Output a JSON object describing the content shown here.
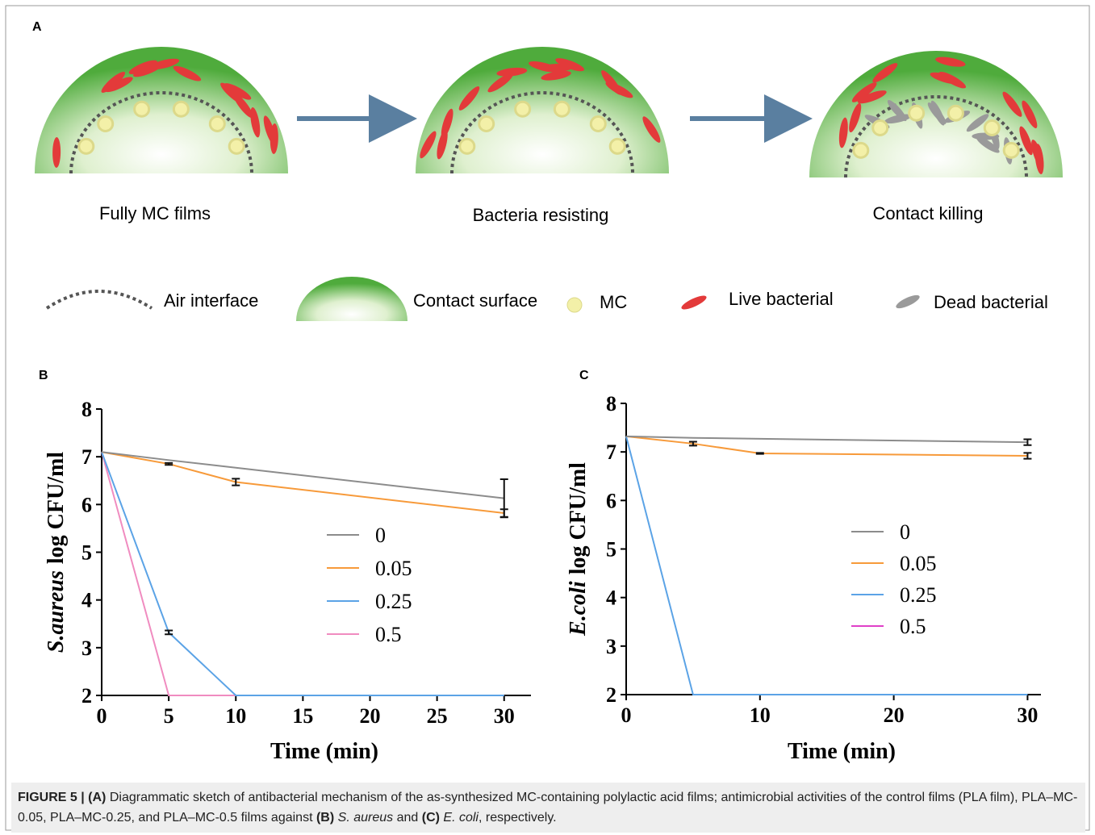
{
  "panel_a": {
    "label": "A",
    "stages": [
      "Fully MC films",
      "Bacteria resisting",
      "Contact killing"
    ],
    "legend": [
      "Air interface",
      "Contact surface",
      "MC",
      "Live bacterial",
      "Dead bacterial"
    ]
  },
  "chart_data": [
    {
      "type": "line",
      "panel_label": "B",
      "x_label": "Time (min)",
      "y_label_species": "S.aureus",
      "y_label": "log CFU/ml",
      "x": [
        0,
        5,
        10,
        30
      ],
      "xlim": [
        0,
        32
      ],
      "xticks": [
        0,
        5,
        10,
        15,
        20,
        25,
        30
      ],
      "ylim": [
        2,
        8
      ],
      "yticks": [
        2,
        3,
        4,
        5,
        6,
        7,
        8
      ],
      "legend": "right",
      "series": [
        {
          "name": "0",
          "color": "#8c8c8c",
          "values": [
            7.1,
            6.93,
            6.77,
            6.13
          ],
          "errors": [
            0,
            0,
            0,
            0.4
          ]
        },
        {
          "name": "0.05",
          "color": "#f79a3a",
          "values": [
            7.1,
            6.85,
            6.47,
            5.82
          ],
          "errors": [
            0,
            0.02,
            0.07,
            0.08
          ]
        },
        {
          "name": "0.25",
          "color": "#5ba3e6",
          "values": [
            7.1,
            3.32,
            2,
            2
          ],
          "errors": [
            0,
            0.04,
            0,
            0
          ]
        },
        {
          "name": "0.5",
          "color": "#f08cc0",
          "values": [
            7.1,
            2,
            2,
            2
          ],
          "errors": [
            0,
            0,
            0,
            0
          ]
        }
      ]
    },
    {
      "type": "line",
      "panel_label": "C",
      "x_label": "Time (min)",
      "y_label_species": "E.coli",
      "y_label": "log CFU/ml",
      "x": [
        0,
        5,
        10,
        30
      ],
      "xlim": [
        0,
        31
      ],
      "xticks": [
        0,
        10,
        20,
        30
      ],
      "ylim": [
        2,
        8
      ],
      "yticks": [
        2,
        3,
        4,
        5,
        6,
        7,
        8
      ],
      "legend": "right",
      "series": [
        {
          "name": "0",
          "color": "#8c8c8c",
          "values": [
            7.32,
            7.29,
            7.27,
            7.2
          ],
          "errors": [
            0,
            0,
            0,
            0.06
          ]
        },
        {
          "name": "0.05",
          "color": "#f79a3a",
          "values": [
            7.32,
            7.17,
            6.97,
            6.92
          ],
          "errors": [
            0,
            0.04,
            0.01,
            0.06
          ]
        },
        {
          "name": "0.25",
          "color": "#5ba3e6",
          "values": [
            7.32,
            2,
            2,
            2
          ],
          "errors": [
            0,
            0,
            0,
            0
          ]
        },
        {
          "name": "0.5",
          "color": "#e040c8",
          "values": [
            null,
            null,
            null,
            null
          ],
          "errors": [
            0,
            0,
            0,
            0
          ]
        }
      ]
    }
  ],
  "caption": {
    "parts": [
      "FIGURE 5 | (A)",
      "Diagrammatic sketch of antibacterial mechanism of the as-synthesized MC-containing polylactic acid films; antimicrobial activities of the control films (PLA film), PLA–MC-0.05, PLA–MC-0.25, and PLA–MC-0.5 films against",
      "(B)",
      "S. aureus",
      "and",
      "(C)",
      "E. coli",
      ", respectively."
    ]
  }
}
